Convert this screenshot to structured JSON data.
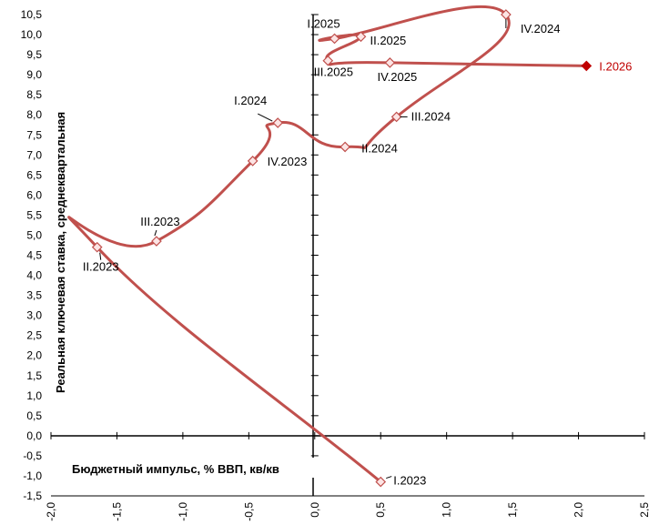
{
  "chart_data": {
    "type": "scatter",
    "xlabel": "Бюджетный импульс, % ВВП, кв/кв",
    "ylabel": "Реальная ключевая ставка, среднеквартальная",
    "xlim": [
      -2.0,
      2.5
    ],
    "ylim": [
      -1.5,
      10.5
    ],
    "xticks": [
      "-2,0",
      "-1,5",
      "-1,0",
      "-0,5",
      "0,0",
      "0,5",
      "1,0",
      "1,5",
      "2,0",
      "2,5"
    ],
    "yticks": [
      "-1,5",
      "-1,0",
      "-0,5",
      "0,0",
      "0,5",
      "1,0",
      "1,5",
      "2,0",
      "2,5",
      "3,0",
      "3,5",
      "4,0",
      "4,5",
      "5,0",
      "5,5",
      "6,0",
      "6,5",
      "7,0",
      "7,5",
      "8,0",
      "8,5",
      "9,0",
      "9,5",
      "10,0",
      "10,5"
    ],
    "grid": false,
    "line_color": "#c0504d",
    "highlight_color": "#c00000",
    "points": [
      {
        "label": "I.2023",
        "x": 0.5,
        "y": -1.15
      },
      {
        "label": "II.2023",
        "x": -1.65,
        "y": 4.7
      },
      {
        "label": "III.2023",
        "x": -1.2,
        "y": 4.85
      },
      {
        "label": "IV.2023",
        "x": -0.47,
        "y": 6.85
      },
      {
        "label": "I.2024",
        "x": -0.28,
        "y": 7.8
      },
      {
        "label": "II.2024",
        "x": 0.23,
        "y": 7.2
      },
      {
        "label": "III.2024",
        "x": 0.62,
        "y": 7.95
      },
      {
        "label": "IV.2024",
        "x": 1.45,
        "y": 10.5
      },
      {
        "label": "I.2025",
        "x": 0.15,
        "y": 9.9
      },
      {
        "label": "II.2025",
        "x": 0.35,
        "y": 9.95
      },
      {
        "label": "III.2025",
        "x": 0.1,
        "y": 9.35
      },
      {
        "label": "IV.2025",
        "x": 0.57,
        "y": 9.3
      },
      {
        "label": "I.2026",
        "x": 2.06,
        "y": 9.22,
        "highlight": true
      }
    ]
  }
}
